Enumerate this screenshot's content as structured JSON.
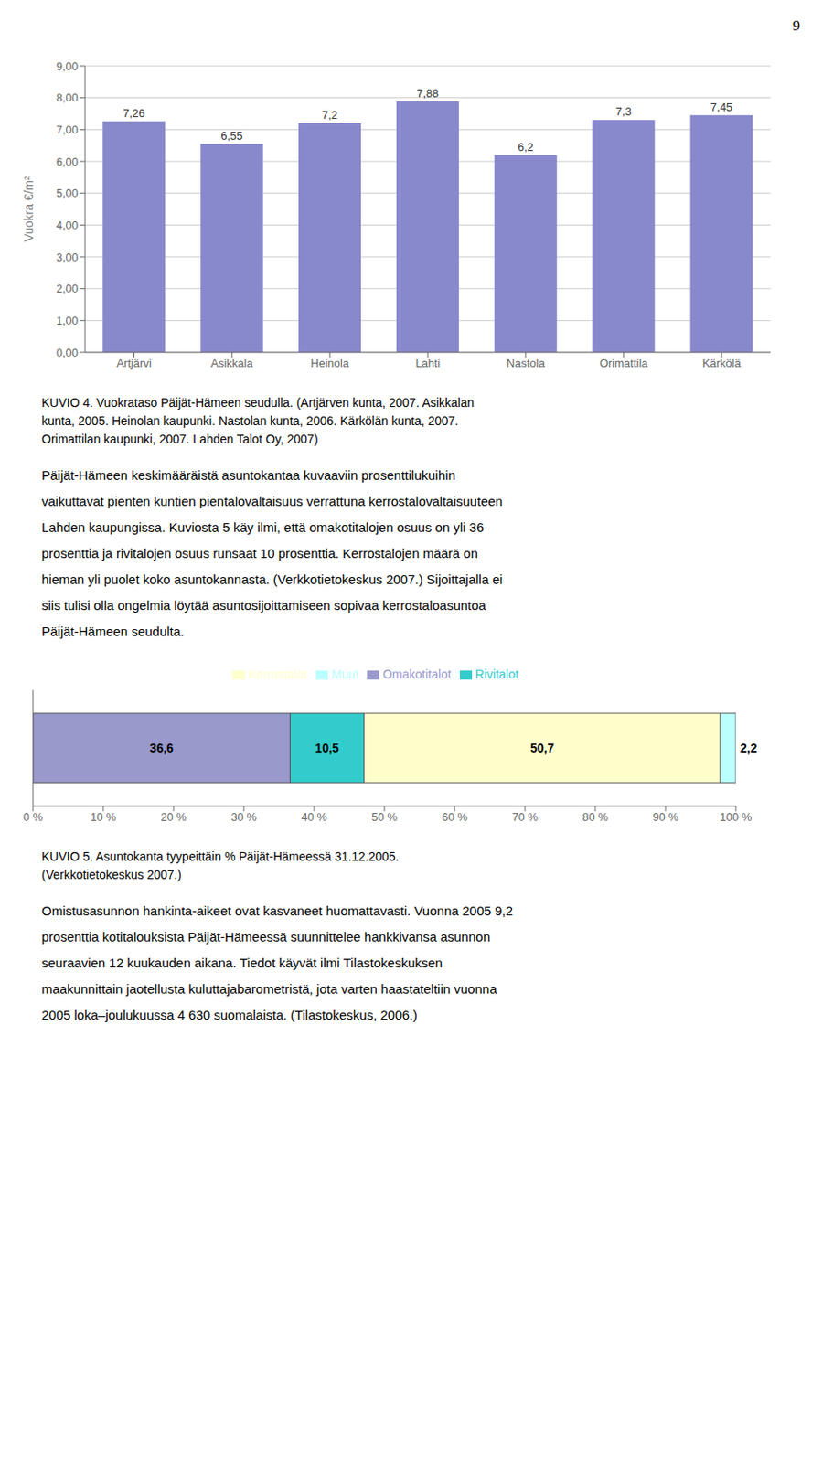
{
  "chart_data": [
    {
      "type": "bar",
      "title": "KUVIO 4. Vuokrataso Päijät-Hämeen seudulla. (Artjärven kunta, 2007. Asikkalan\nkunta, 2005. Heinolan kaupunki. Nastolan kunta, 2006. Kärkölän kunta, 2007.\nOrimattilan kaupunki, 2007. Lahden Talot Oy, 2007)",
      "annotations": [
        "9",
        "Päijät-Hämeen keskimääräistä asuntokantaa kuvaaviin prosenttilukuihin",
        "vaikuttavat pienten kuntien pientalovaltaisuus verrattuna kerrostalovaltaisuuteen",
        "Lahden kaupungissa. Kuviosta 5 käy ilmi, että omakotitalojen osuus on yli 36",
        "prosenttia ja rivitalojen osuus runsaat 10 prosenttia. Kerrostalojen määrä on",
        "hieman yli puolet koko asuntokannasta. (Verkkotietokeskus 2007.) Sijoittajalla ei",
        "siis tulisi olla ongelmia löytää asuntosijoittamiseen sopivaa kerrostaloasuntoa",
        "Päijät-Hämeen seudulta."
      ],
      "categories": [
        "Artjärvi",
        "Asikkala",
        "Heinola",
        "Lahti",
        "Nastola",
        "Orimattila",
        "Kärkölä"
      ],
      "values": [
        7.26,
        6.55,
        7.2,
        7.88,
        6.2,
        7.3,
        7.45
      ],
      "value_labels": [
        "7,26",
        "6,55",
        "7,2",
        "7,88",
        "6,2",
        "7,3",
        "7,45"
      ],
      "color": "#8888cc",
      "ylabel": "Vuokra €/m²",
      "ylim": [
        0,
        9
      ],
      "yticks": [
        {
          "value": 0,
          "label": "0,00"
        },
        {
          "value": 1,
          "label": "1,00"
        },
        {
          "value": 2,
          "label": "2,00"
        },
        {
          "value": 3,
          "label": "3,00"
        },
        {
          "value": 4,
          "label": "4,00"
        },
        {
          "value": 5,
          "label": "5,00"
        },
        {
          "value": 6,
          "label": "6,00"
        },
        {
          "value": 7,
          "label": "7,00"
        },
        {
          "value": 8,
          "label": "8,00"
        },
        {
          "value": 9,
          "label": "9,00"
        }
      ],
      "grid": true,
      "data_labels": true
    },
    {
      "type": "bar",
      "orientation": "horizontal",
      "stacked": true,
      "title": "KUVIO 5. Asuntokanta tyypeittäin % Päijät-Hämeessä 31.12.2005.\n(Verkkotietokeskus 2007.)",
      "annotations": [
        "Omistusasunnon hankinta-aikeet ovat kasvaneet huomattavasti. Vuonna 2005 9,2",
        "prosenttia kotitalouksista Päijät-Hämeessä suunnittelee hankkivansa asunnon",
        "seuraavien 12 kuukauden aikana. Tiedot käyvät ilmi Tilastokeskuksen",
        "maakunnittain jaotellusta kuluttajabarometristä, jota varten haastateltiin vuonna",
        "2005 loka–joulukuussa 4 630 suomalaista. (Tilastokeskus, 2006.)"
      ],
      "categories": [
        null
      ],
      "series": [
        {
          "name": "Omakotitalot",
          "color": "#9999cc",
          "values": [
            36.6
          ],
          "value_labels": [
            "36,6"
          ]
        },
        {
          "name": "Rivitalot",
          "color": "#33cccc",
          "values": [
            10.5
          ],
          "value_labels": [
            "10,5"
          ]
        },
        {
          "name": "Kerrostalot",
          "color": "#ffffcc",
          "values": [
            50.7
          ],
          "value_labels": [
            "50,7"
          ]
        },
        {
          "name": "Muut",
          "color": "#bbffff",
          "values": [
            2.2
          ],
          "value_labels": [
            "2,2"
          ]
        }
      ],
      "xlim": [
        0,
        100
      ],
      "xticks": [
        {
          "value": 0,
          "label": "0 %"
        },
        {
          "value": 10,
          "label": "10 %"
        },
        {
          "value": 20,
          "label": "20 %"
        },
        {
          "value": 30,
          "label": "30 %"
        },
        {
          "value": 40,
          "label": "40 %"
        },
        {
          "value": 50,
          "label": "50 %"
        },
        {
          "value": 60,
          "label": "60 %"
        },
        {
          "value": 70,
          "label": "70 %"
        },
        {
          "value": 80,
          "label": "80 %"
        },
        {
          "value": 90,
          "label": "90 %"
        },
        {
          "value": 100,
          "label": "100 %"
        }
      ],
      "legend": "top",
      "tick_labels": "x",
      "grid": false,
      "data_labels": true
    }
  ]
}
